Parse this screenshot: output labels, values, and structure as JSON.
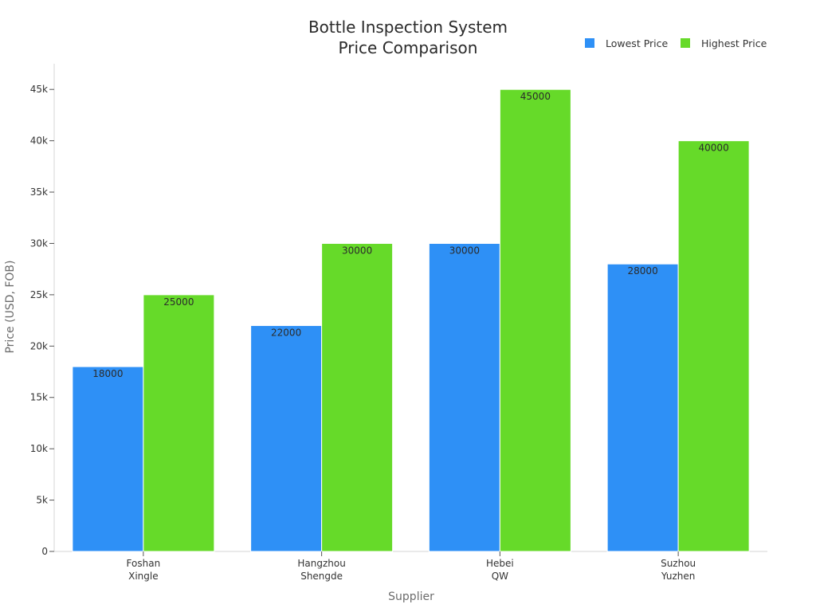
{
  "chart_data": {
    "type": "bar",
    "title_lines": [
      "Bottle Inspection System",
      "Price Comparison"
    ],
    "categories": [
      [
        "Foshan",
        "Xingle"
      ],
      [
        "Hangzhou",
        "Shengde"
      ],
      [
        "Hebei",
        "QW"
      ],
      [
        "Suzhou",
        "Yuzhen"
      ]
    ],
    "series": [
      {
        "name": "Lowest Price",
        "color": "#2e90f6",
        "values": [
          18000,
          22000,
          30000,
          28000
        ]
      },
      {
        "name": "Highest Price",
        "color": "#66da29",
        "values": [
          25000,
          30000,
          45000,
          40000
        ]
      }
    ],
    "data_labels": [
      [
        "18000",
        "22000",
        "30000",
        "28000"
      ],
      [
        "25000",
        "30000",
        "45000",
        "40000"
      ]
    ],
    "xlabel": "Supplier",
    "ylabel": "Price (USD, FOB)",
    "ylim": [
      0,
      47500
    ],
    "yticks": [
      0,
      5000,
      10000,
      15000,
      20000,
      25000,
      30000,
      35000,
      40000,
      45000
    ],
    "ytick_labels": [
      "0",
      "5k",
      "10k",
      "15k",
      "20k",
      "25k",
      "30k",
      "35k",
      "40k",
      "45k"
    ],
    "legend_position": "top-right",
    "grid": false
  }
}
